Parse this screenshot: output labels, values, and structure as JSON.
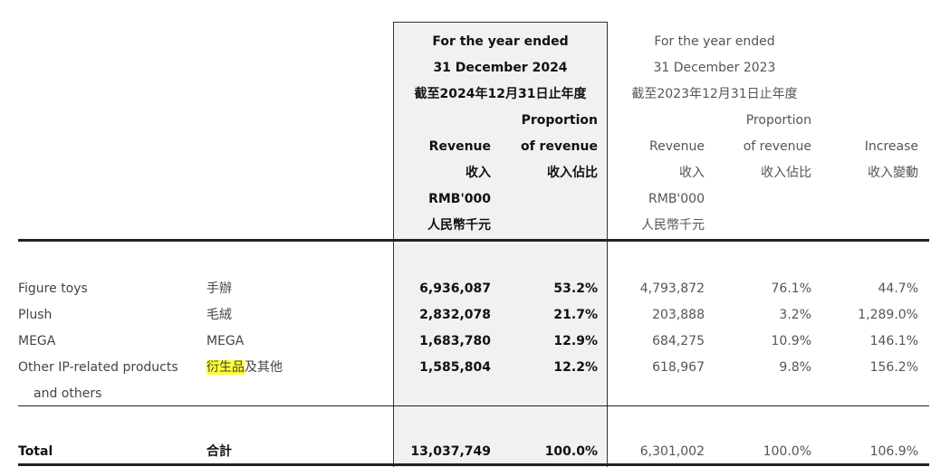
{
  "header": {
    "y2024": {
      "line1": "For the year ended",
      "line2": "31 December 2024",
      "line3": "截至2024年12月31日止年度",
      "revenue_en": "Revenue",
      "revenue_zh": "收入",
      "revenue_unit_en": "RMB'000",
      "revenue_unit_zh": "人民幣千元",
      "prop_en1": "Proportion",
      "prop_en2": "of revenue",
      "prop_zh": "收入佔比"
    },
    "y2023": {
      "line1": "For the year ended",
      "line2": "31 December 2023",
      "line3": "截至2023年12月31日止年度",
      "revenue_en": "Revenue",
      "revenue_zh": "收入",
      "revenue_unit_en": "RMB'000",
      "revenue_unit_zh": "人民幣千元",
      "prop_en1": "Proportion",
      "prop_en2": "of revenue",
      "prop_zh": "收入佔比"
    },
    "increase_en": "Increase",
    "increase_zh": "收入變動"
  },
  "rows": [
    {
      "en": "Figure toys",
      "zh": "手辦",
      "rev2024": "6,936,087",
      "prop2024": "53.2%",
      "rev2023": "4,793,872",
      "prop2023": "76.1%",
      "increase": "44.7%"
    },
    {
      "en": "Plush",
      "zh": "毛絨",
      "rev2024": "2,832,078",
      "prop2024": "21.7%",
      "rev2023": "203,888",
      "prop2023": "3.2%",
      "increase": "1,289.0%"
    },
    {
      "en": "MEGA",
      "zh": "MEGA",
      "rev2024": "1,683,780",
      "prop2024": "12.9%",
      "rev2023": "684,275",
      "prop2023": "10.9%",
      "increase": "146.1%"
    },
    {
      "en": "Other IP-related products",
      "en2": "and others",
      "zh_highlight": "衍生品",
      "zh": "及其他",
      "rev2024": "1,585,804",
      "prop2024": "12.2%",
      "rev2023": "618,967",
      "prop2023": "9.8%",
      "increase": "156.2%"
    }
  ],
  "total": {
    "en": "Total",
    "zh": "合計",
    "rev2024": "13,037,749",
    "prop2024": "100.0%",
    "rev2023": "6,301,002",
    "prop2023": "100.0%",
    "increase": "106.9%"
  },
  "colors": {
    "shade": "#f1f1f2",
    "highlight": "#ffff33",
    "rule": "#222222"
  }
}
